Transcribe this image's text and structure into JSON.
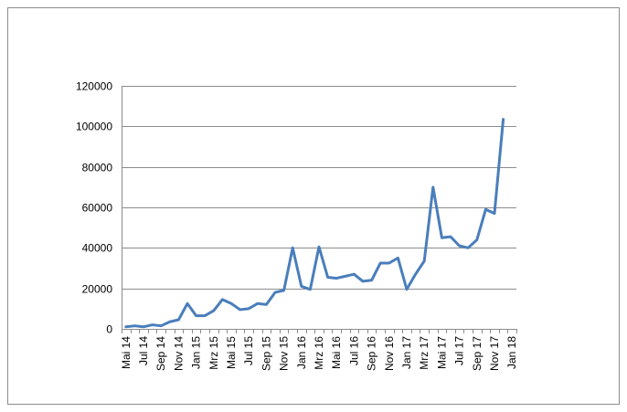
{
  "chart_data": {
    "type": "line",
    "title": "",
    "xlabel": "",
    "ylabel": "",
    "ylim": [
      0,
      120000
    ],
    "yticks": [
      0,
      20000,
      40000,
      60000,
      80000,
      100000,
      120000
    ],
    "grid": "horizontal",
    "legend": "none",
    "x": [
      "May 2014",
      "Jun 2014",
      "Jul 2014",
      "Aug 2014",
      "Sep 2014",
      "Oct 2014",
      "Nov 2014",
      "Dec 2014",
      "Jan 2015",
      "Feb 2015",
      "Mar 2015",
      "Apr 2015",
      "May 2015",
      "Jun 2015",
      "Jul 2015",
      "Aug 2015",
      "Sep 2015",
      "Oct 2015",
      "Nov 2015",
      "Dec 2015",
      "Jan 2016",
      "Feb 2016",
      "Mar 2016",
      "Apr 2016",
      "May 2016",
      "Jun 2016",
      "Jul 2016",
      "Aug 2016",
      "Sep 2016",
      "Oct 2016",
      "Nov 2016",
      "Dec 2016",
      "Jan 2017",
      "Feb 2017",
      "Mar 2017",
      "Apr 2017",
      "May 2017",
      "Jun 2017",
      "Jul 2017",
      "Aug 2017",
      "Sep 2017",
      "Oct 2017",
      "Nov 2017",
      "Dec 2017"
    ],
    "xtick_labels": [
      "Mai 14",
      "Jul 14",
      "Sep 14",
      "Nov 14",
      "Jan 15",
      "Mrz 15",
      "Mai 15",
      "Jul 15",
      "Sep 15",
      "Nov 15",
      "Jan 16",
      "Mrz 16",
      "Mai 16",
      "Jul 16",
      "Sep 16",
      "Nov 16",
      "Jan 17",
      "Mrz 17",
      "Mai 17",
      "Jul 17",
      "Sep 17",
      "Nov 17",
      "Jan 18"
    ],
    "series": [
      {
        "color": "#4a7ebb",
        "values": [
          1000,
          1500,
          1000,
          2000,
          1500,
          3500,
          4500,
          12500,
          6500,
          6500,
          9000,
          14500,
          12500,
          9500,
          10000,
          12500,
          12000,
          18000,
          19000,
          40000,
          21000,
          19500,
          40500,
          25500,
          25000,
          26000,
          27000,
          23500,
          24000,
          32500,
          32500,
          35000,
          19500,
          27000,
          33500,
          70000,
          45000,
          45500,
          41000,
          40000,
          44000,
          59000,
          57000,
          103500
        ]
      }
    ]
  }
}
